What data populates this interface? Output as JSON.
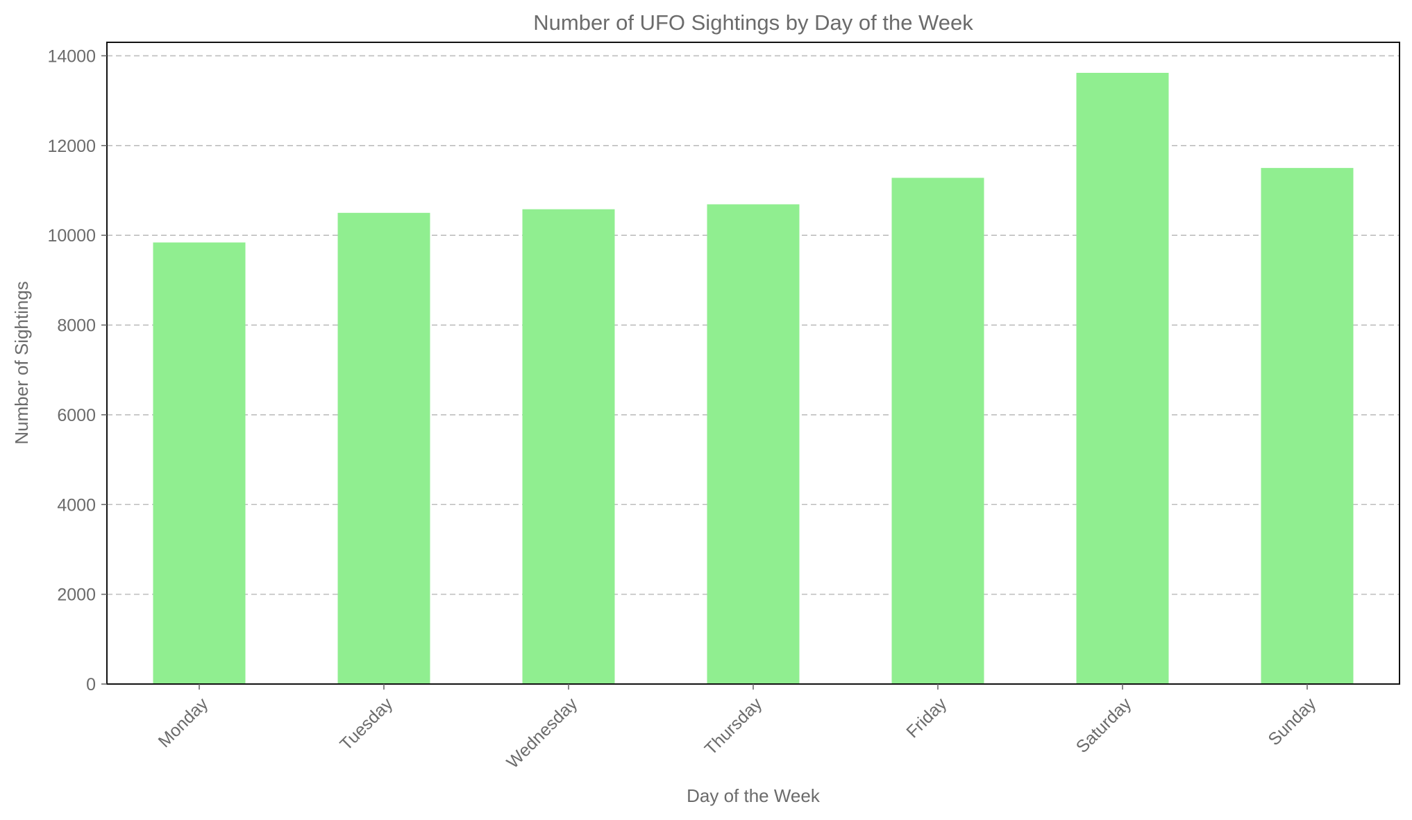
{
  "chart_data": {
    "type": "bar",
    "title": "Number of UFO Sightings by Day of the Week",
    "xlabel": "Day of the Week",
    "ylabel": "Number of Sightings",
    "categories": [
      "Monday",
      "Tuesday",
      "Wednesday",
      "Thursday",
      "Friday",
      "Saturday",
      "Sunday"
    ],
    "values": [
      9840,
      10500,
      10580,
      10690,
      11280,
      13620,
      11500
    ],
    "ylim": [
      0,
      14300
    ],
    "yticks": [
      0,
      2000,
      4000,
      6000,
      8000,
      10000,
      12000,
      14000
    ],
    "grid": "y-dashed",
    "legend": "none",
    "colors": {
      "bar": "#90ee90",
      "text": "#6b6b6b",
      "grid": "#bdbdbd",
      "frame": "#111111"
    }
  }
}
